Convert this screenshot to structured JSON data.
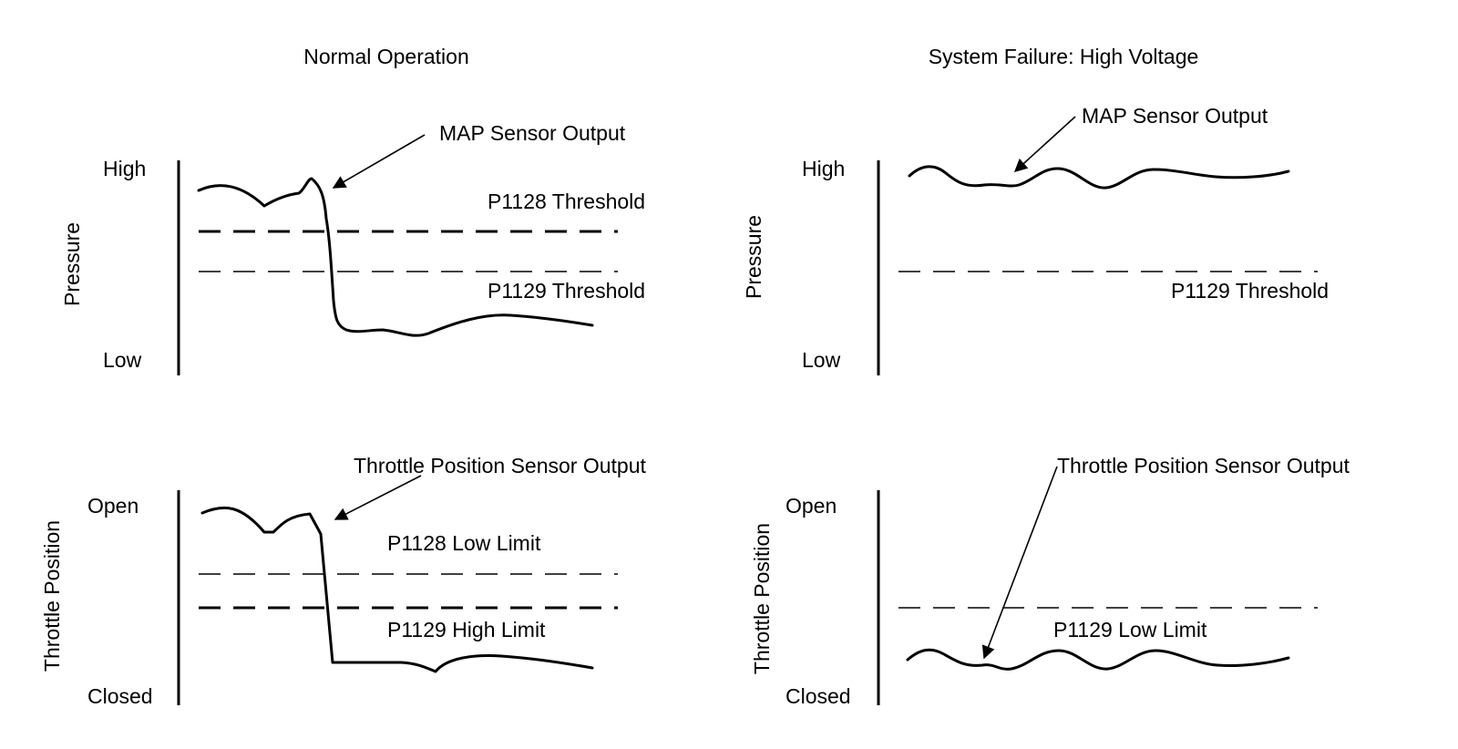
{
  "panels": {
    "normal": {
      "title": "Normal Operation",
      "pressure": {
        "ylabel": "Pressure",
        "high_label": "High",
        "low_label": "Low",
        "callout": "MAP Sensor Output",
        "threshold_1": "P1128 Threshold",
        "threshold_2": "P1129 Threshold"
      },
      "throttle": {
        "ylabel": "Throttle Position",
        "high_label": "Open",
        "low_label": "Closed",
        "callout": "Throttle Position Sensor Output",
        "threshold_1": "P1128 Low Limit",
        "threshold_2": "P1129 High Limit"
      }
    },
    "failure": {
      "title": "System Failure: High Voltage",
      "pressure": {
        "ylabel": "Pressure",
        "high_label": "High",
        "low_label": "Low",
        "callout": "MAP Sensor Output",
        "threshold_1": "P1129 Threshold"
      },
      "throttle": {
        "ylabel": "Throttle Position",
        "high_label": "Open",
        "low_label": "Closed",
        "callout": "Throttle Position Sensor Output",
        "threshold_1": "P1129 Low Limit"
      }
    }
  }
}
